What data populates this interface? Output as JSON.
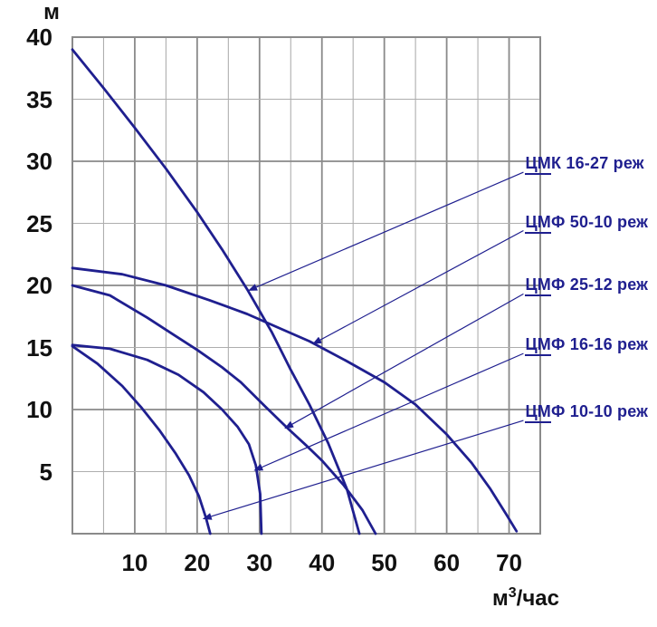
{
  "page": {
    "background": "#ffffff"
  },
  "axis": {
    "y_title": "м",
    "x_unit_main": "м",
    "x_unit_sup": "3",
    "x_unit_rest": "/час"
  },
  "colors": {
    "curve": "#1f1f8f",
    "label_text": "#1f1f8f",
    "grid_major": "#8a8a8a",
    "grid_minor": "#aeaeae",
    "tick_text": "#111111",
    "background": "#ffffff"
  },
  "chart_data": {
    "type": "line",
    "title": "",
    "xlabel": "м³/час",
    "ylabel": "м",
    "xlim": [
      0,
      75
    ],
    "ylim": [
      0,
      40
    ],
    "x_ticks": [
      10,
      20,
      30,
      40,
      50,
      60,
      70
    ],
    "y_ticks": [
      5,
      10,
      15,
      20,
      25,
      30,
      35,
      40
    ],
    "grid": {
      "step": 5,
      "major_every": 10,
      "on": true
    },
    "legend_position": "right-annotations",
    "series": [
      {
        "name": "ЦМК 16-27",
        "points": [
          [
            0,
            39
          ],
          [
            5,
            35.9
          ],
          [
            10,
            32.7
          ],
          [
            15,
            29.4
          ],
          [
            20,
            25.9
          ],
          [
            24,
            22.9
          ],
          [
            28,
            19.7
          ],
          [
            32,
            16.2
          ],
          [
            35,
            13.2
          ],
          [
            38,
            10.4
          ],
          [
            41,
            7.3
          ],
          [
            44,
            3.6
          ],
          [
            46,
            0
          ]
        ]
      },
      {
        "name": "ЦМФ 50-10",
        "points": [
          [
            0,
            21.4
          ],
          [
            8,
            20.9
          ],
          [
            15,
            20.0
          ],
          [
            22,
            18.8
          ],
          [
            28,
            17.7
          ],
          [
            33,
            16.6
          ],
          [
            38,
            15.5
          ],
          [
            44,
            13.9
          ],
          [
            50,
            12.2
          ],
          [
            55,
            10.4
          ],
          [
            60,
            8.0
          ],
          [
            64,
            5.7
          ],
          [
            67,
            3.6
          ],
          [
            69.5,
            1.6
          ],
          [
            71.2,
            0.2
          ]
        ]
      },
      {
        "name": "ЦМФ 25-12",
        "points": [
          [
            0,
            20
          ],
          [
            6,
            19.2
          ],
          [
            12,
            17.4
          ],
          [
            16,
            16.1
          ],
          [
            20,
            14.8
          ],
          [
            24,
            13.4
          ],
          [
            27,
            12.2
          ],
          [
            31,
            10.2
          ],
          [
            34.5,
            8.5
          ],
          [
            37.5,
            7.1
          ],
          [
            40,
            5.9
          ],
          [
            43.5,
            3.9
          ],
          [
            46.5,
            1.9
          ],
          [
            48.6,
            0
          ]
        ]
      },
      {
        "name": "ЦМФ 16-16",
        "points": [
          [
            0,
            15.2
          ],
          [
            6,
            14.9
          ],
          [
            12,
            14.0
          ],
          [
            17,
            12.8
          ],
          [
            21,
            11.4
          ],
          [
            24,
            10.0
          ],
          [
            26.5,
            8.6
          ],
          [
            28.3,
            7.2
          ],
          [
            29.4,
            5.5
          ],
          [
            30.1,
            3.2
          ],
          [
            30.3,
            0
          ]
        ]
      },
      {
        "name": "ЦМФ 10-10",
        "points": [
          [
            0,
            15.1
          ],
          [
            4,
            13.7
          ],
          [
            8,
            11.9
          ],
          [
            11,
            10.2
          ],
          [
            14,
            8.3
          ],
          [
            16.5,
            6.5
          ],
          [
            18.7,
            4.7
          ],
          [
            20.3,
            3.0
          ],
          [
            21.4,
            1.3
          ],
          [
            22.1,
            0
          ]
        ]
      }
    ],
    "annotations": [
      {
        "underlined": "ЦМ",
        "rest": "К 16-27 реж",
        "label_pos": [
          72.6,
          29.7
        ],
        "arrow_tip": [
          28.3,
          19.6
        ]
      },
      {
        "underlined": "ЦМ",
        "rest": "Ф 50-10 реж",
        "label_pos": [
          72.6,
          25.0
        ],
        "arrow_tip": [
          38.6,
          15.3
        ]
      },
      {
        "underlined": "ЦМ",
        "rest": "Ф 25-12 реж",
        "label_pos": [
          72.6,
          19.9
        ],
        "arrow_tip": [
          34.1,
          8.5
        ]
      },
      {
        "underlined": "ЦМ",
        "rest": "Ф 16-16 реж",
        "label_pos": [
          72.6,
          15.1
        ],
        "arrow_tip": [
          29.2,
          5.1
        ]
      },
      {
        "underlined": "ЦМ",
        "rest": "Ф 10-10 реж",
        "label_pos": [
          72.6,
          9.7
        ],
        "arrow_tip": [
          21.0,
          1.2
        ]
      }
    ]
  }
}
